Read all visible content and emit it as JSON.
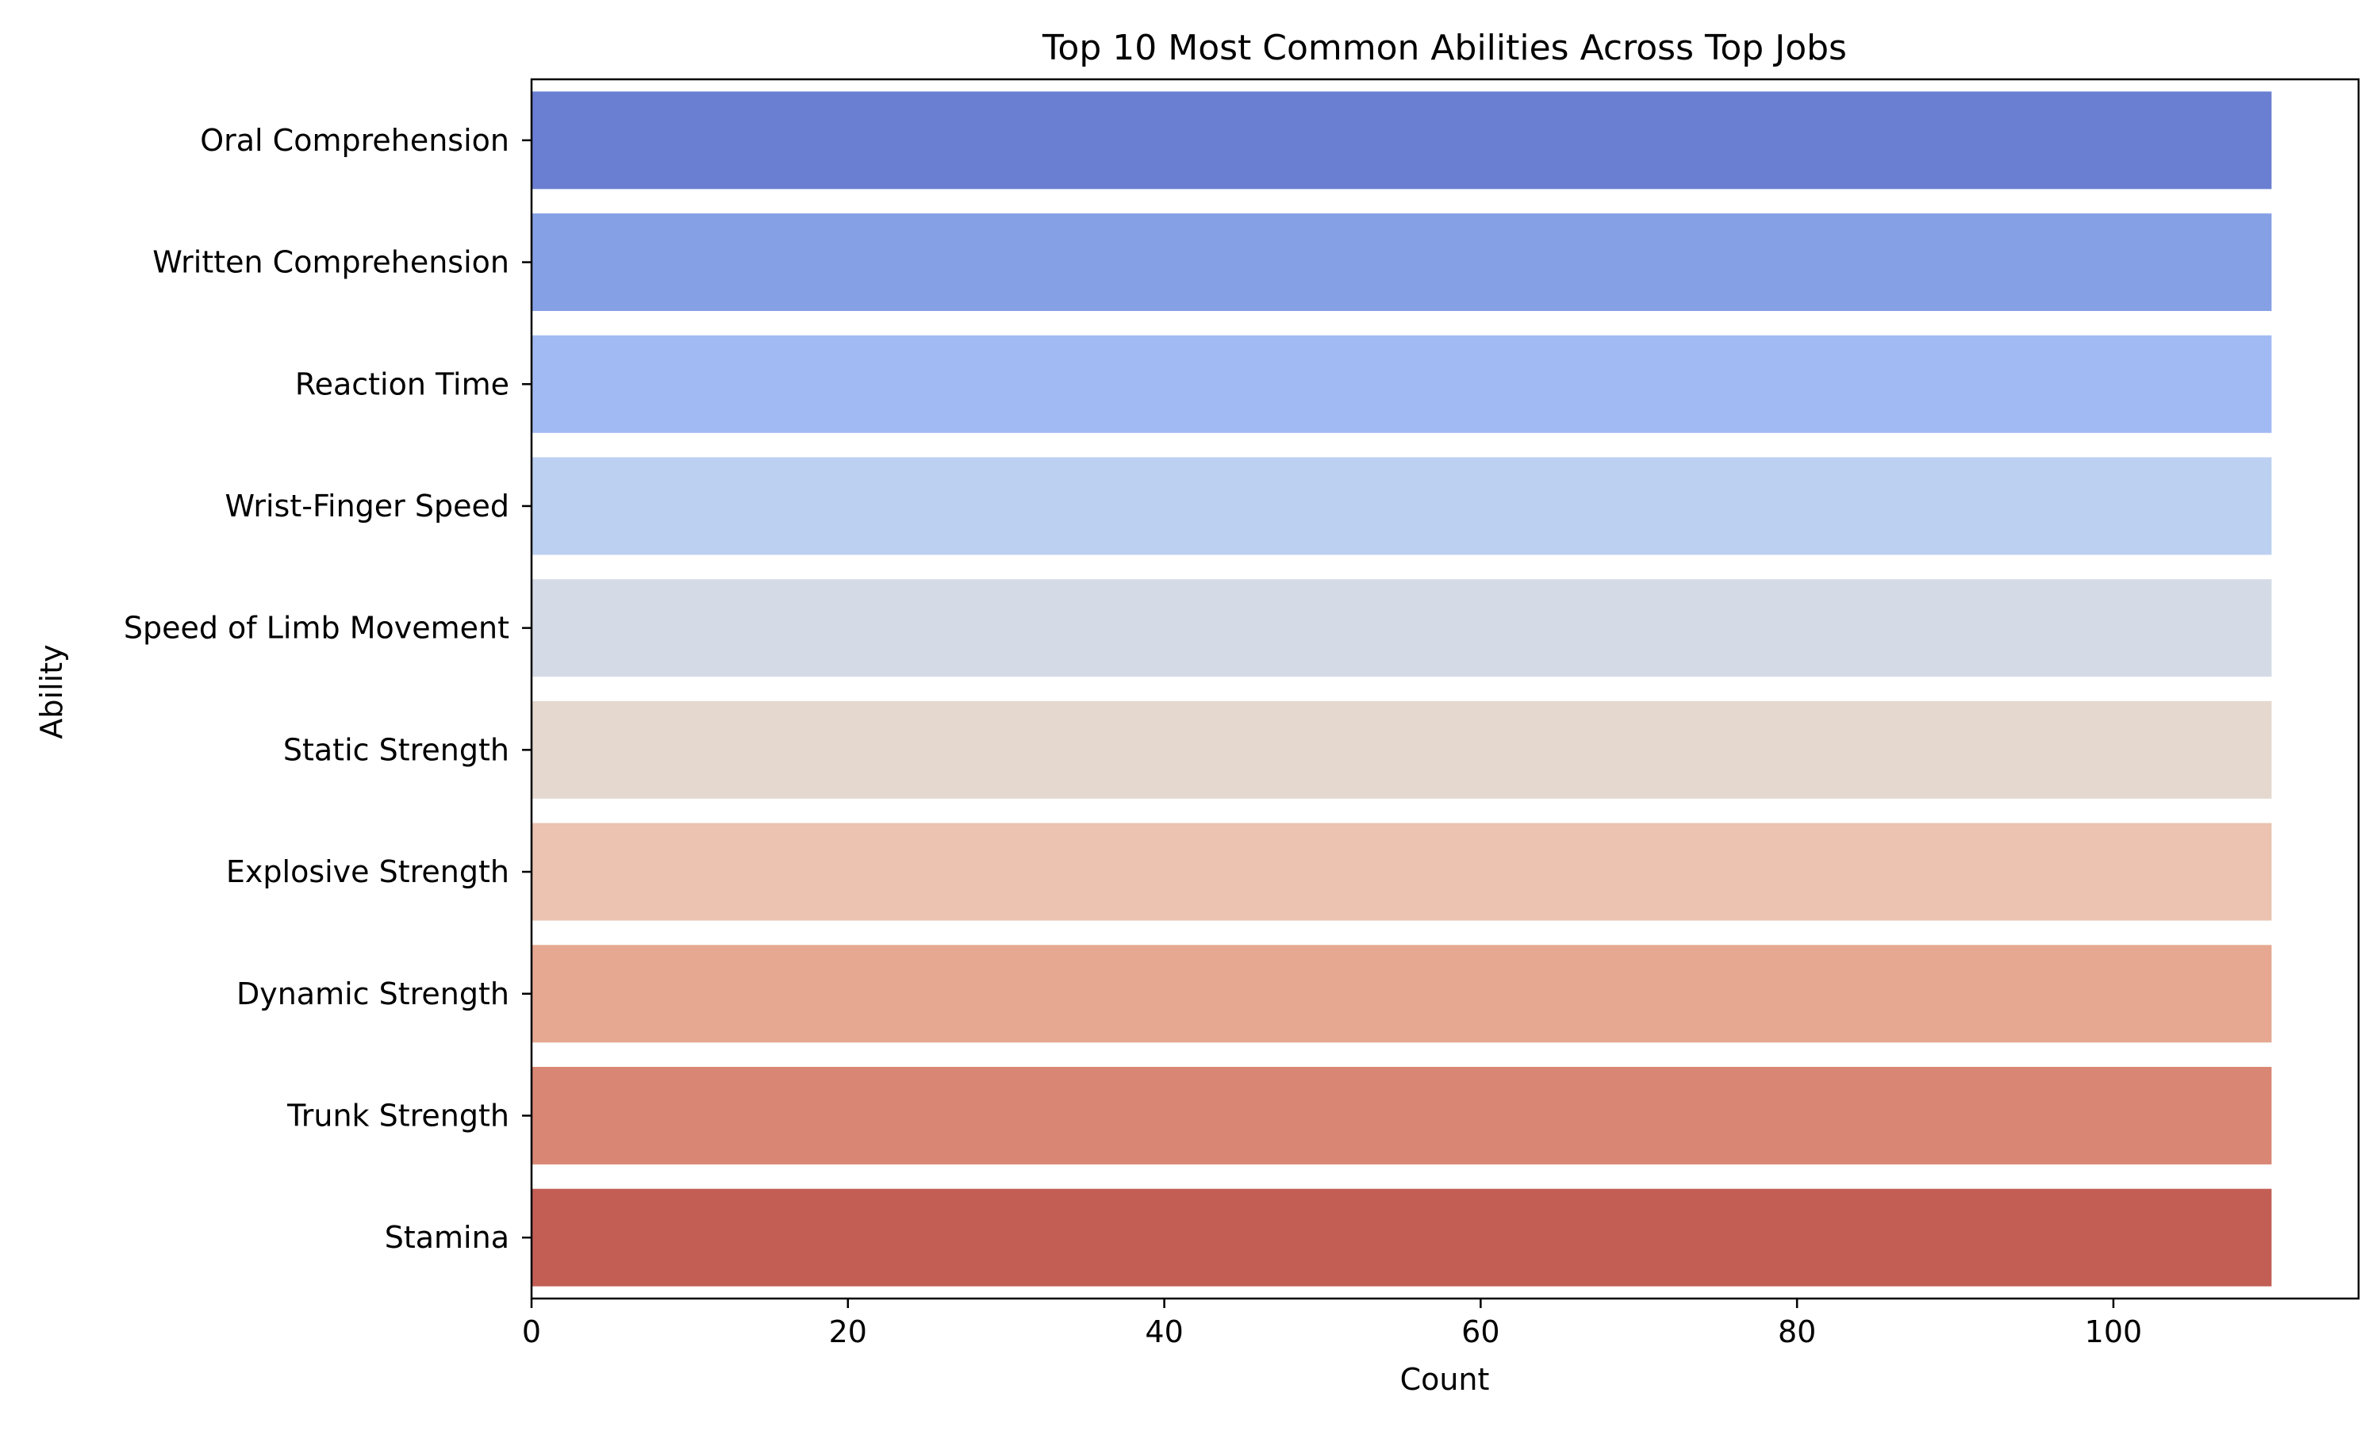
{
  "chart_data": {
    "type": "bar",
    "orientation": "horizontal",
    "title": "Top 10 Most Common Abilities Across Top Jobs",
    "xlabel": "Count",
    "ylabel": "Ability",
    "categories": [
      "Oral Comprehension",
      "Written Comprehension",
      "Reaction Time",
      "Wrist-Finger Speed",
      "Speed of Limb Movement",
      "Static Strength",
      "Explosive Strength",
      "Dynamic Strength",
      "Trunk Strength",
      "Stamina"
    ],
    "values": [
      110,
      110,
      110,
      110,
      110,
      110,
      110,
      110,
      110,
      110
    ],
    "xlim": [
      0,
      115.5
    ],
    "xticks": [
      0,
      20,
      40,
      60,
      80,
      100
    ],
    "grid": false,
    "colors": [
      "#6a7fd2",
      "#86a0e5",
      "#a1baf3",
      "#bcd0f1",
      "#d5dbe6",
      "#e4d8cf",
      "#ebc3b0",
      "#e6a891",
      "#d98674",
      "#c25e54"
    ]
  }
}
